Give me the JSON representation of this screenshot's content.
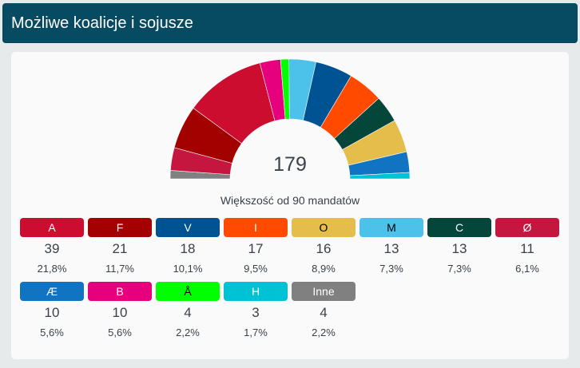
{
  "header": {
    "title": "Możliwe koalicje i sojusze"
  },
  "chart_data": {
    "type": "parliament-semicircle",
    "total": "179",
    "majority_text": "Większość od 90 mandatów",
    "arc_order": [
      "Inne",
      "Ø",
      "F",
      "A",
      "B",
      "Å",
      "M",
      "V",
      "I",
      "C",
      "O",
      "Æ",
      "H"
    ]
  },
  "parties": [
    {
      "label": "A",
      "seats": "39",
      "pct": "21,8%",
      "color": "#cc0d2f",
      "text": "#ffffff"
    },
    {
      "label": "F",
      "seats": "21",
      "pct": "11,7%",
      "color": "#a30000",
      "text": "#ffffff"
    },
    {
      "label": "V",
      "seats": "18",
      "pct": "10,1%",
      "color": "#005392",
      "text": "#ffffff"
    },
    {
      "label": "I",
      "seats": "17",
      "pct": "9,5%",
      "color": "#ff4a00",
      "text": "#ffffff"
    },
    {
      "label": "O",
      "seats": "16",
      "pct": "8,9%",
      "color": "#e5bd4b",
      "text": "#000000"
    },
    {
      "label": "M",
      "seats": "13",
      "pct": "7,3%",
      "color": "#4cc2ea",
      "text": "#000000"
    },
    {
      "label": "C",
      "seats": "13",
      "pct": "7,3%",
      "color": "#04463a",
      "text": "#ffffff"
    },
    {
      "label": "Ø",
      "seats": "11",
      "pct": "6,1%",
      "color": "#c5163f",
      "text": "#ffffff"
    },
    {
      "label": "Æ",
      "seats": "10",
      "pct": "5,6%",
      "color": "#1174c2",
      "text": "#ffffff"
    },
    {
      "label": "B",
      "seats": "10",
      "pct": "5,6%",
      "color": "#e6007e",
      "text": "#ffffff"
    },
    {
      "label": "Å",
      "seats": "4",
      "pct": "2,2%",
      "color": "#00ff00",
      "text": "#000000"
    },
    {
      "label": "H",
      "seats": "3",
      "pct": "1,7%",
      "color": "#00c2d5",
      "text": "#ffffff"
    },
    {
      "label": "Inne",
      "seats": "4",
      "pct": "2,2%",
      "color": "#808080",
      "text": "#ffffff"
    }
  ]
}
